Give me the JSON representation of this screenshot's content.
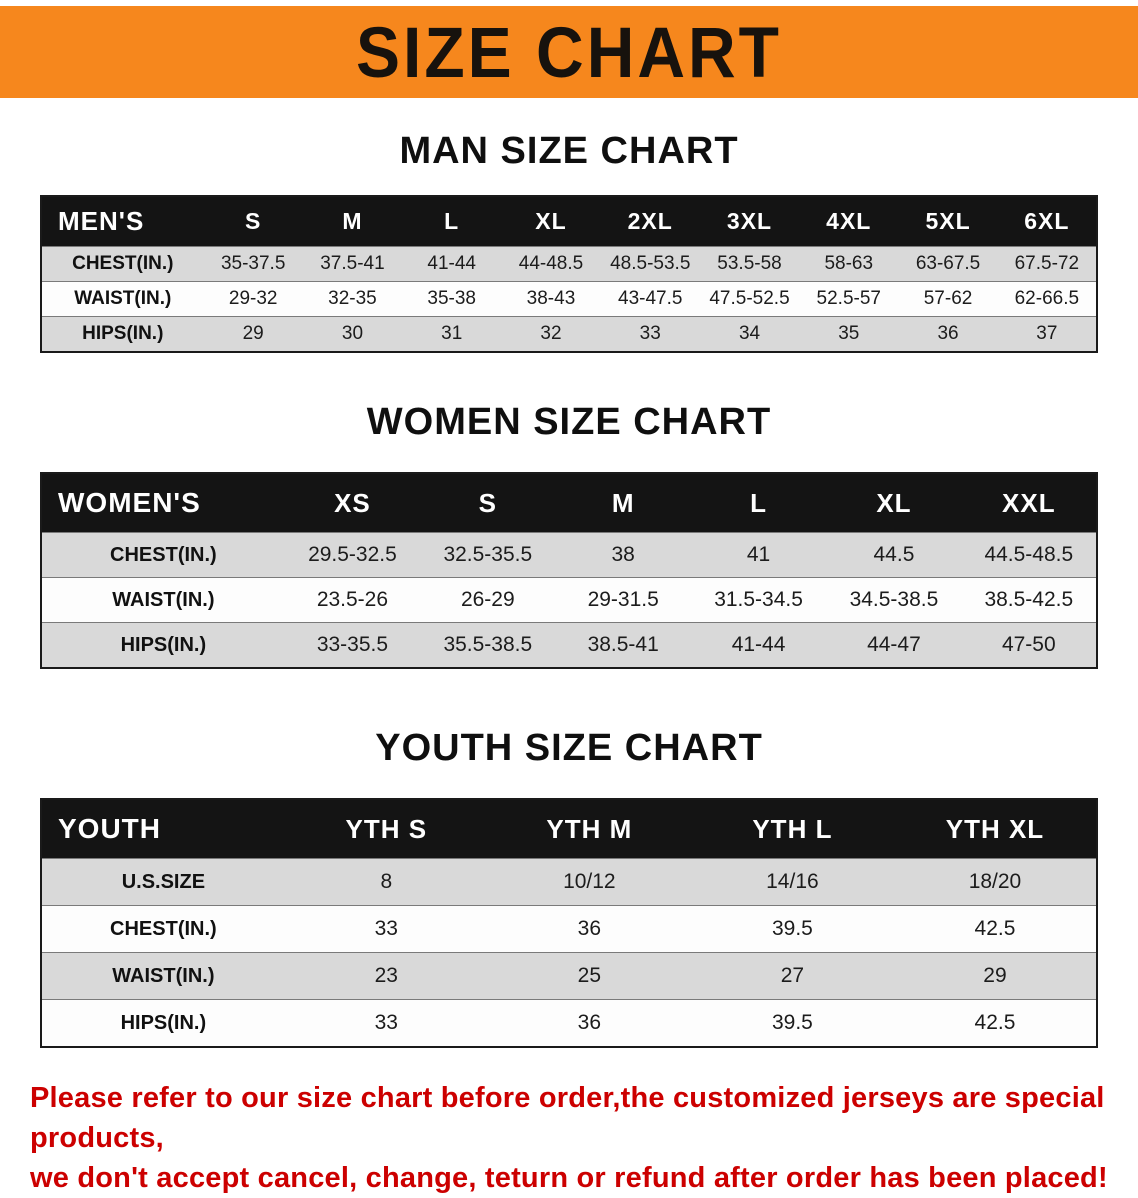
{
  "banner": {
    "title": "SIZE CHART"
  },
  "colors": {
    "banner_bg": "#F6871D",
    "header_row_bg": "#141414",
    "header_row_text": "#FFFFFF",
    "shaded_row_bg": "#D9D9D9",
    "note_text": "#CC0000"
  },
  "sections": [
    {
      "id": "men",
      "title": "MAN SIZE CHART",
      "table": {
        "header": [
          "MEN'S",
          "S",
          "M",
          "L",
          "XL",
          "2XL",
          "3XL",
          "4XL",
          "5XL",
          "6XL"
        ],
        "rows": [
          [
            "CHEST(IN.)",
            "35-37.5",
            "37.5-41",
            "41-44",
            "44-48.5",
            "48.5-53.5",
            "53.5-58",
            "58-63",
            "63-67.5",
            "67.5-72"
          ],
          [
            "WAIST(IN.)",
            "29-32",
            "32-35",
            "35-38",
            "38-43",
            "43-47.5",
            "47.5-52.5",
            "52.5-57",
            "57-62",
            "62-66.5"
          ],
          [
            "HIPS(IN.)",
            "29",
            "30",
            "31",
            "32",
            "33",
            "34",
            "35",
            "36",
            "37"
          ]
        ]
      }
    },
    {
      "id": "women",
      "title": "WOMEN SIZE CHART",
      "table": {
        "header": [
          "WOMEN'S",
          "XS",
          "S",
          "M",
          "L",
          "XL",
          "XXL"
        ],
        "rows": [
          [
            "CHEST(IN.)",
            "29.5-32.5",
            "32.5-35.5",
            "38",
            "41",
            "44.5",
            "44.5-48.5"
          ],
          [
            "WAIST(IN.)",
            "23.5-26",
            "26-29",
            "29-31.5",
            "31.5-34.5",
            "34.5-38.5",
            "38.5-42.5"
          ],
          [
            "HIPS(IN.)",
            "33-35.5",
            "35.5-38.5",
            "38.5-41",
            "41-44",
            "44-47",
            "47-50"
          ]
        ]
      }
    },
    {
      "id": "youth",
      "title": "YOUTH SIZE CHART",
      "table": {
        "header": [
          "YOUTH",
          "YTH S",
          "YTH M",
          "YTH L",
          "YTH XL"
        ],
        "rows": [
          [
            "U.S.SIZE",
            "8",
            "10/12",
            "14/16",
            "18/20"
          ],
          [
            "CHEST(IN.)",
            "33",
            "36",
            "39.5",
            "42.5"
          ],
          [
            "WAIST(IN.)",
            "23",
            "25",
            "27",
            "29"
          ],
          [
            "HIPS(IN.)",
            "33",
            "36",
            "39.5",
            "42.5"
          ]
        ]
      }
    }
  ],
  "footer": {
    "lines": [
      "Please refer to our size chart before order,the customized jerseys are special products,",
      "we don't accept cancel, change, teturn or refund after order has been placed!"
    ]
  }
}
